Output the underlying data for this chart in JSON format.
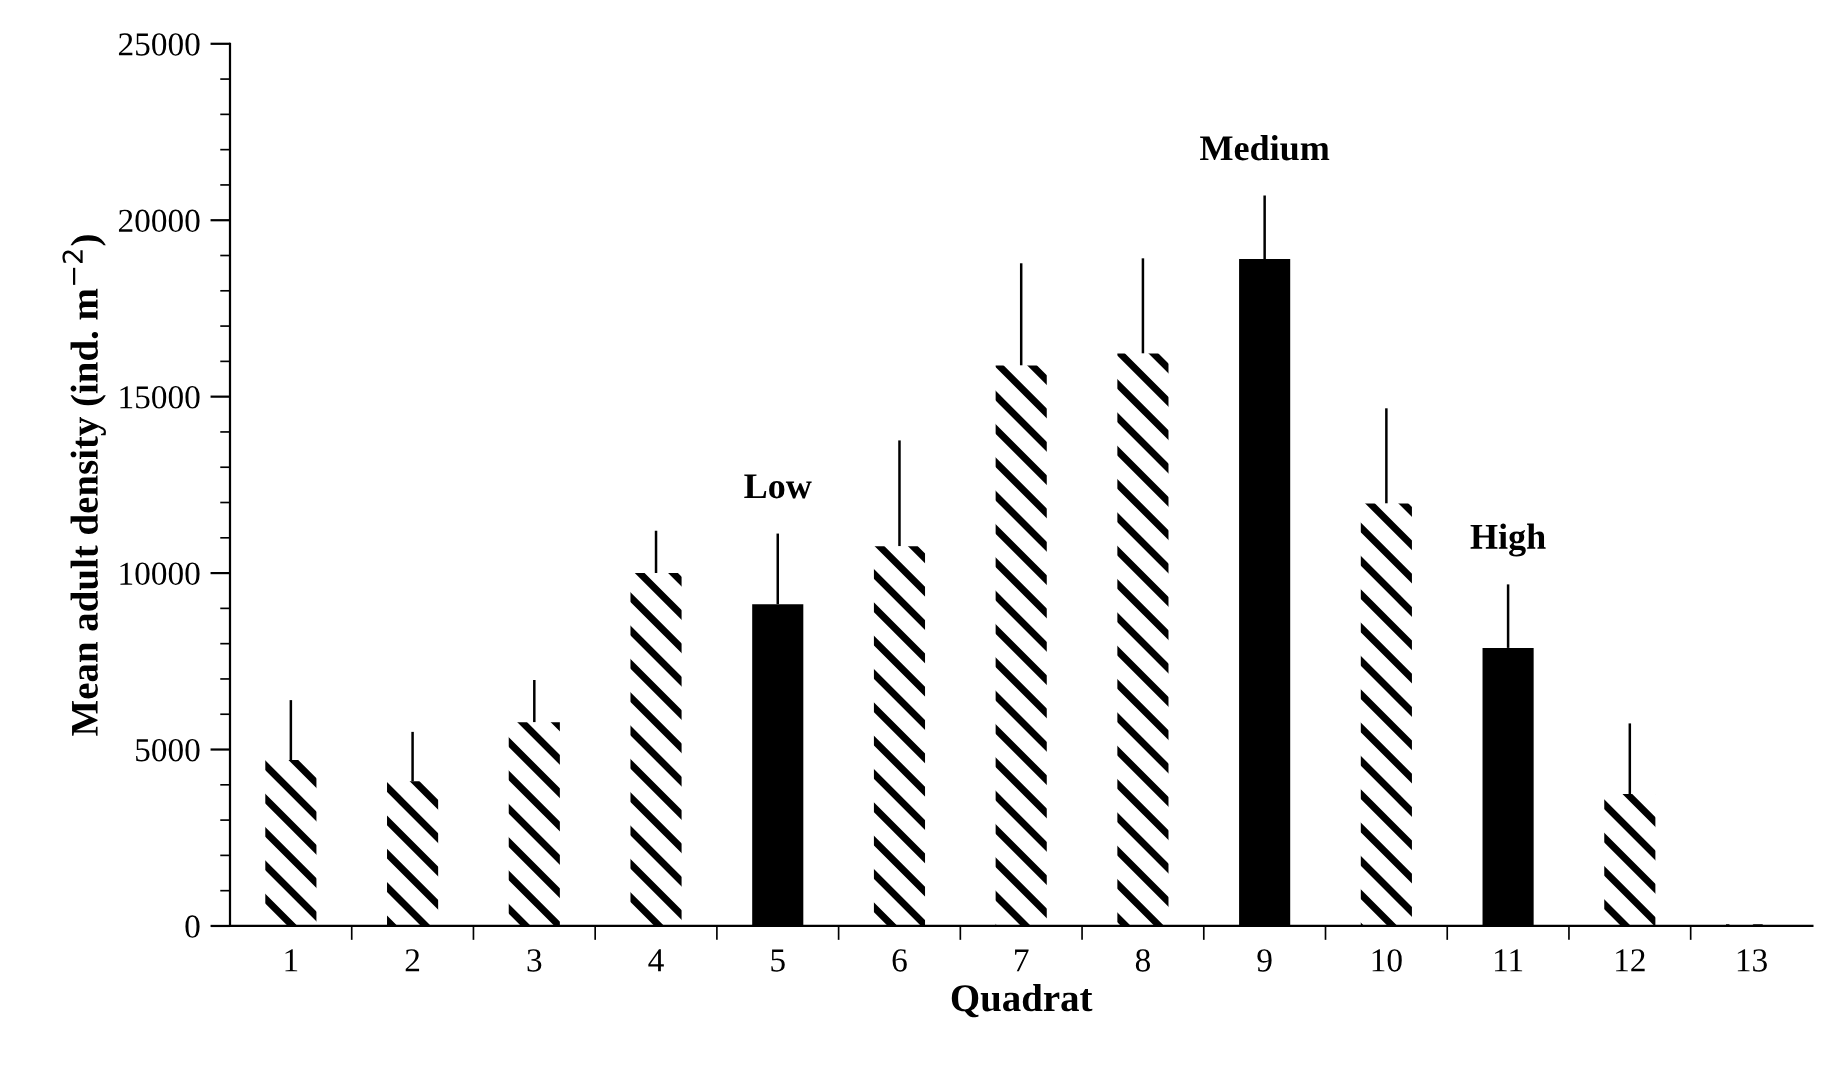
{
  "chart_data": {
    "type": "bar",
    "xlabel": "Quadrat",
    "ylabel": "Mean adult density (ind. m$^{−2}$)",
    "categories": [
      "1",
      "2",
      "3",
      "4",
      "5",
      "6",
      "7",
      "8",
      "9",
      "10",
      "11",
      "12",
      "13"
    ],
    "values": [
      4700,
      4100,
      5770,
      10000,
      9120,
      10760,
      15880,
      16220,
      18900,
      11970,
      7880,
      3740,
      50
    ],
    "errors": [
      [
        4700,
        6400
      ],
      [
        4100,
        5500
      ],
      [
        5770,
        6970
      ],
      [
        10000,
        11200
      ],
      [
        9120,
        11120
      ],
      [
        10760,
        13760
      ],
      [
        15880,
        18780
      ],
      [
        16220,
        18920
      ],
      [
        18900,
        20700
      ],
      [
        11970,
        14670
      ],
      [
        7880,
        9680
      ],
      [
        3740,
        5740
      ],
      null
    ],
    "colors": [
      "#ffffff",
      "#ffffff",
      "#ffffff",
      "#ffffff",
      "#000000",
      "#ffffff",
      "#ffffff",
      "#ffffff",
      "#000000",
      "#ffffff",
      "#000000",
      "#ffffff",
      "#ffffff"
    ],
    "ylim": [
      0,
      25000
    ],
    "yticks": [
      0,
      {
        "value": 1000,
        "label": null
      },
      {
        "value": 2000,
        "label": null
      },
      {
        "value": 3000,
        "label": null
      },
      {
        "value": 4000,
        "label": null
      },
      5000,
      {
        "value": 6000,
        "label": null
      },
      {
        "value": 7000,
        "label": null
      },
      {
        "value": 8000,
        "label": null
      },
      {
        "value": 9000,
        "label": null
      },
      10000,
      {
        "value": 11000,
        "label": null
      },
      {
        "value": 12000,
        "label": null
      },
      {
        "value": 13000,
        "label": null
      },
      {
        "value": 14000,
        "label": null
      },
      15000,
      {
        "value": 16000,
        "label": null
      },
      {
        "value": 17000,
        "label": null
      },
      {
        "value": 18000,
        "label": null
      },
      {
        "value": 19000,
        "label": null
      },
      20000,
      {
        "value": 21000,
        "label": null
      },
      {
        "value": 22000,
        "label": null
      },
      {
        "value": 23000,
        "label": null
      },
      {
        "value": 24000,
        "label": null
      },
      25000
    ],
    "annotations": [
      "Low",
      "Medium",
      "High"
    ],
    "grid": false,
    "legend": false
  }
}
